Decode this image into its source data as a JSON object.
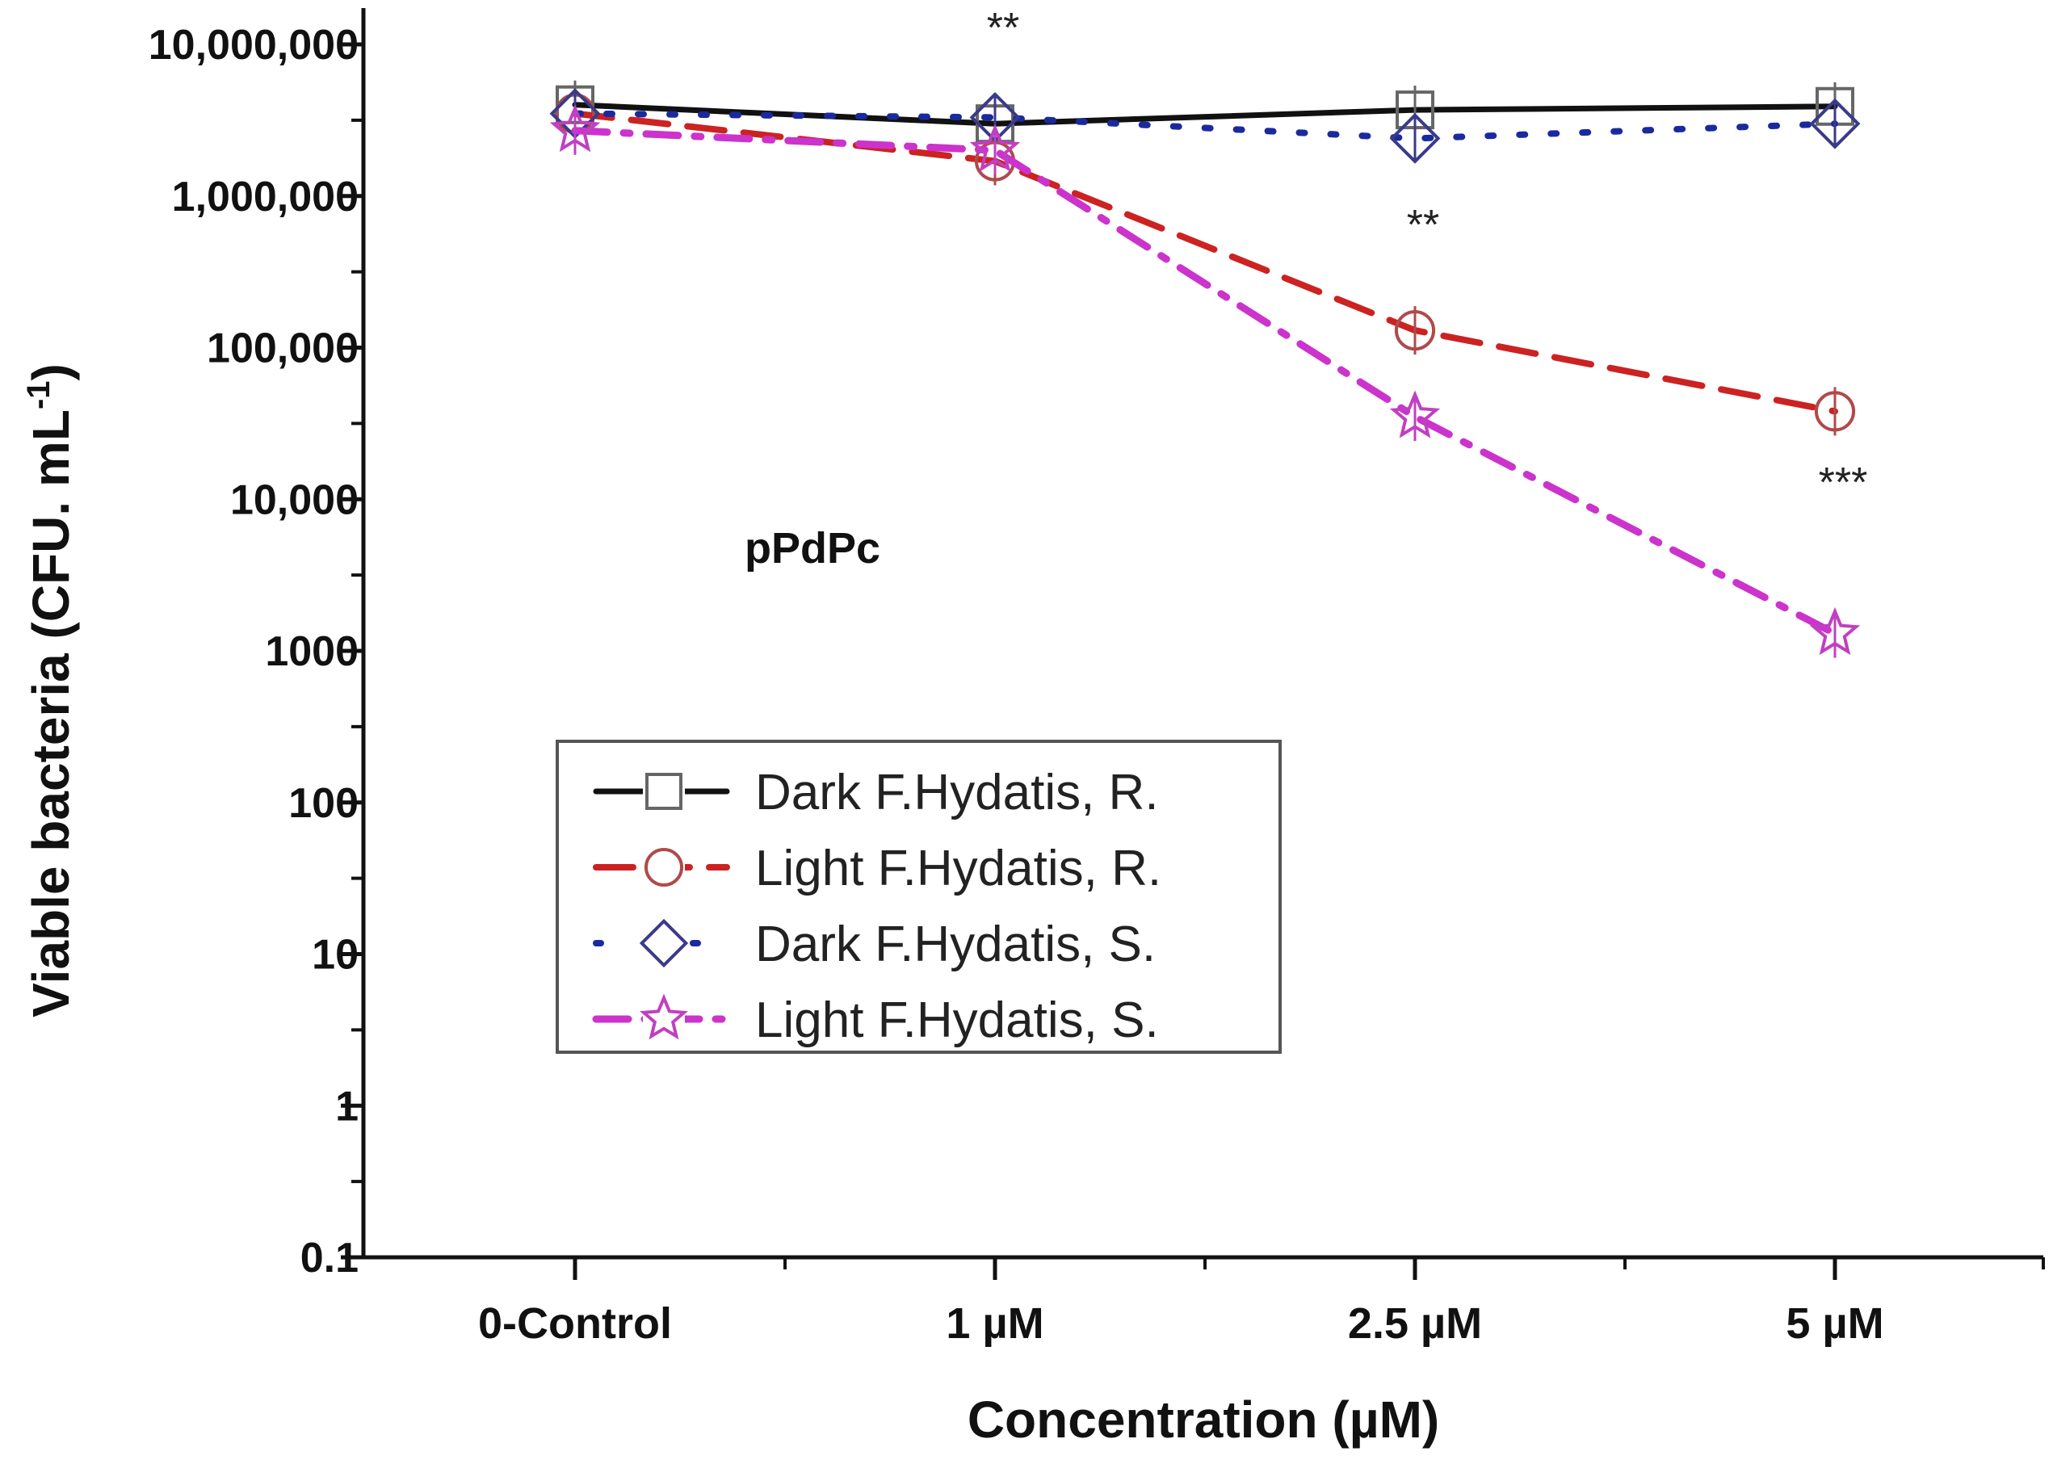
{
  "chart_data": {
    "type": "line",
    "title": "",
    "xlabel": "Concentration (µM)",
    "ylabel": "Viable bacteria (CFU. mL",
    "ylabel_superscript": "-1",
    "ylabel_close": ")",
    "y_scale": "log",
    "ylim": [
      0.1,
      10000000
    ],
    "y_ticks": [
      {
        "value": 10000000,
        "label": "10,000,000"
      },
      {
        "value": 1000000,
        "label": "1,000,000"
      },
      {
        "value": 100000,
        "label": "100,000"
      },
      {
        "value": 10000,
        "label": "10,000"
      },
      {
        "value": 1000,
        "label": "1000"
      },
      {
        "value": 100,
        "label": "100"
      },
      {
        "value": 10,
        "label": "10"
      },
      {
        "value": 1,
        "label": "1"
      },
      {
        "value": 0.1,
        "label": "0.1"
      }
    ],
    "categories": [
      "0-Control",
      "1 µM",
      "2.5 µM",
      "5 µM"
    ],
    "grid": false,
    "legend_position": "lower-center",
    "series": [
      {
        "name": "Dark F.Hydatis, R.",
        "values": [
          4000000,
          3000000,
          3700000,
          3900000
        ],
        "color": "#111111",
        "marker": "square",
        "marker_color": "#666666",
        "line_style": "solid"
      },
      {
        "name": "Light F.Hydatis, R.",
        "values": [
          3500000,
          1700000,
          130000,
          38000
        ],
        "color": "#cc2222",
        "marker": "circle",
        "marker_color": "#b04a4a",
        "line_style": "dashed"
      },
      {
        "name": "Dark F.Hydatis, S.",
        "values": [
          3500000,
          3300000,
          2400000,
          3000000
        ],
        "color": "#1a2a9e",
        "marker": "diamond",
        "marker_color": "#3a3a8a",
        "line_style": "dotted"
      },
      {
        "name": "Light F.Hydatis, S.",
        "values": [
          2700000,
          2000000,
          35000,
          1300
        ],
        "color": "#cc33cc",
        "marker": "star",
        "marker_color": "#c040c0",
        "line_style": "dashdot"
      }
    ],
    "annotations": [
      {
        "text": "pPdPc"
      }
    ],
    "significance_markers": [
      {
        "text": "**",
        "x": "1 µM",
        "y": 15000000
      },
      {
        "text": "**",
        "x": "2.5 µM",
        "y": 750000
      },
      {
        "text": "***",
        "x": "5 µM",
        "y": 15000
      }
    ]
  }
}
